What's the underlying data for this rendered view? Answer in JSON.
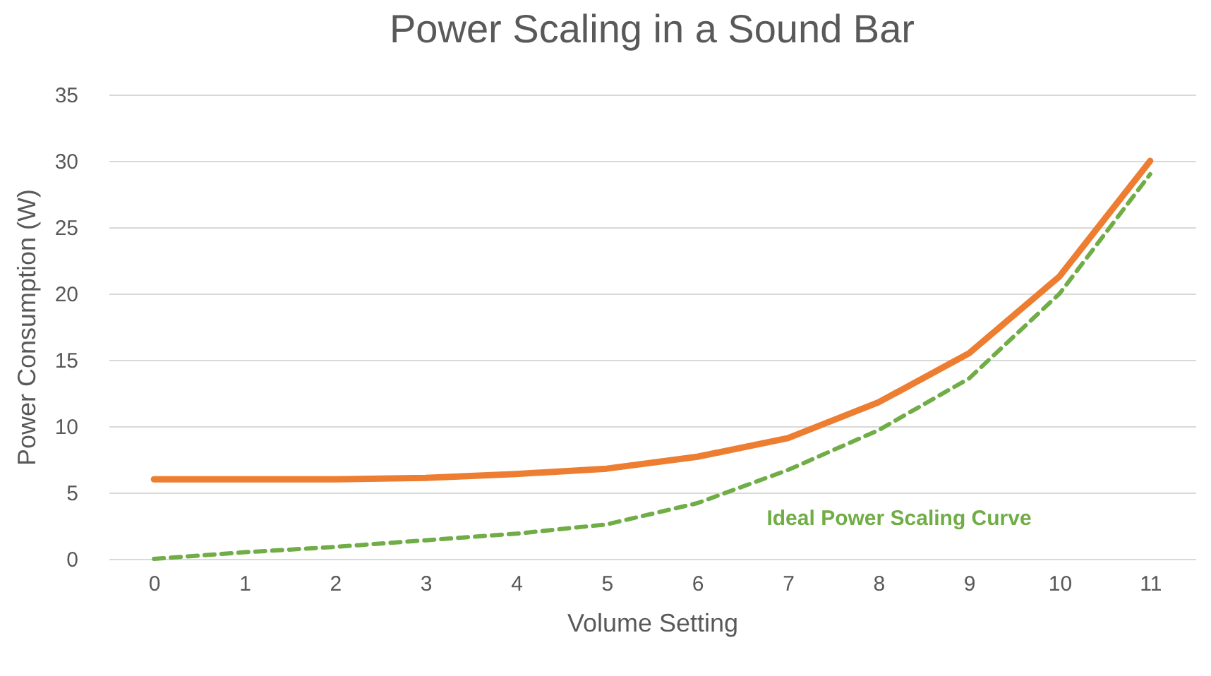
{
  "chart_data": {
    "type": "line",
    "title": "Power Scaling in a Sound Bar",
    "xlabel": "Volume Setting",
    "ylabel": "Power Consumption (W)",
    "categories": [
      "0",
      "1",
      "2",
      "3",
      "4",
      "5",
      "6",
      "7",
      "8",
      "9",
      "10",
      "11"
    ],
    "series": [
      {
        "color": "#ed7d31",
        "line_style": "solid",
        "values": [
          6,
          6,
          6,
          6.1,
          6.4,
          6.8,
          7.7,
          9.1,
          11.8,
          15.5,
          21.3,
          30
        ]
      },
      {
        "name": "Ideal Power Scaling Curve",
        "color": "#70ad47",
        "line_style": "dashed",
        "values": [
          0,
          0.5,
          0.9,
          1.4,
          1.9,
          2.6,
          4.2,
          6.7,
          9.7,
          13.6,
          20,
          29
        ]
      }
    ],
    "ylim": [
      0,
      35
    ],
    "yticks": [
      0,
      5,
      10,
      15,
      20,
      25,
      30,
      35
    ],
    "grid": "y",
    "legend": false,
    "marker": "none"
  }
}
